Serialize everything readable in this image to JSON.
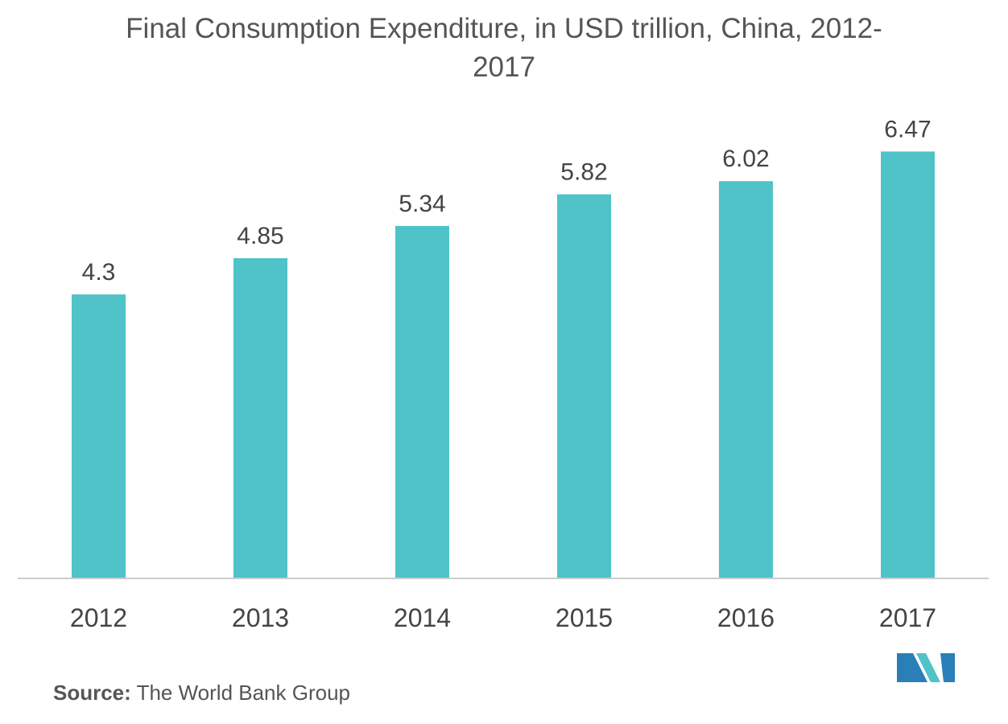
{
  "chart_data": {
    "type": "bar",
    "title": "Final Consumption Expenditure, in USD trillion, China, 2012-2017",
    "categories": [
      "2012",
      "2013",
      "2014",
      "2015",
      "2016",
      "2017"
    ],
    "values": [
      4.3,
      4.85,
      5.34,
      5.82,
      6.02,
      6.47
    ],
    "color": "#4fc3c8",
    "source_label": "Source:",
    "source": "The World Bank Group"
  }
}
